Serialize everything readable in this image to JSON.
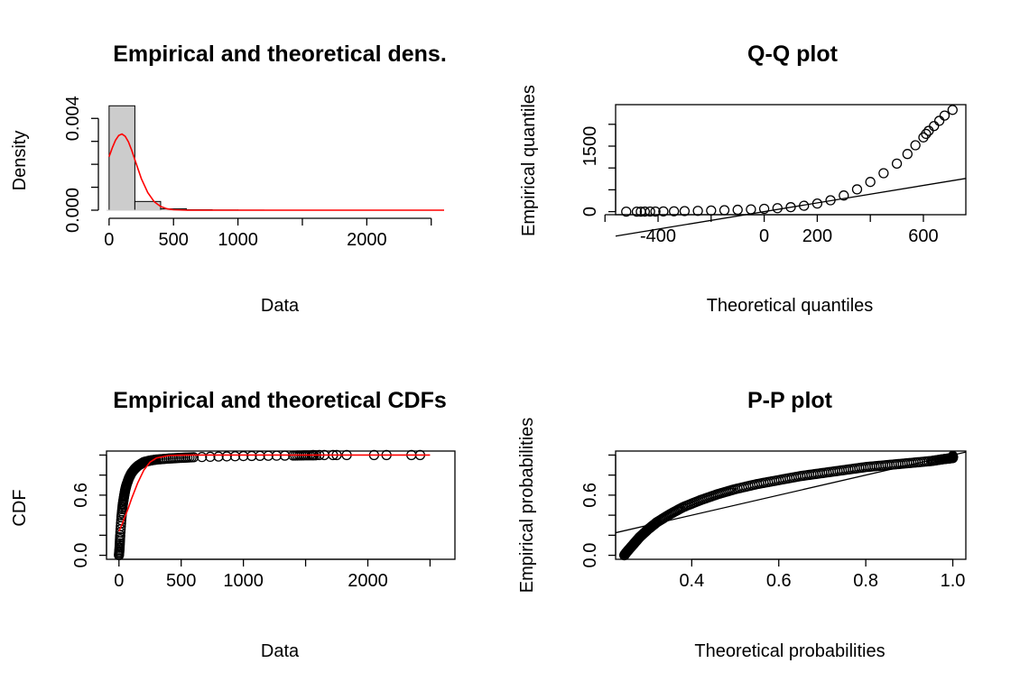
{
  "chart_data": [
    {
      "id": "density",
      "type": "bar",
      "title": "Empirical and theoretical dens.",
      "xlabel": "Data",
      "ylabel": "Density",
      "xlim": [
        -20,
        2600
      ],
      "ylim": [
        0,
        0.0046
      ],
      "x_ticks": [
        0,
        500,
        1000,
        2000
      ],
      "x_tick_marks": [
        0,
        500,
        1000,
        1500,
        2000,
        2500
      ],
      "y_ticks": [
        0.0,
        0.004
      ],
      "y_tick_marks": [
        0,
        0.001,
        0.002,
        0.003,
        0.004
      ],
      "y_tick_labels": [
        "0.000",
        "0.004"
      ],
      "bins": [
        {
          "from": 0,
          "to": 200,
          "density": 0.00455
        },
        {
          "from": 200,
          "to": 400,
          "density": 0.00038
        },
        {
          "from": 400,
          "to": 600,
          "density": 6e-05
        },
        {
          "from": 600,
          "to": 800,
          "density": 2e-05
        },
        {
          "from": 800,
          "to": 1000,
          "density": 8e-06
        },
        {
          "from": 1000,
          "to": 1200,
          "density": 3e-06
        }
      ],
      "curve": {
        "color": "#ff0000",
        "x": [
          0,
          25,
          50,
          75,
          100,
          125,
          150,
          175,
          200,
          250,
          300,
          350,
          400,
          450,
          500,
          600,
          700,
          800,
          1000,
          1500,
          2000,
          2600
        ],
        "y": [
          0.00233,
          0.00272,
          0.00305,
          0.00326,
          0.00332,
          0.00322,
          0.00298,
          0.00262,
          0.0022,
          0.00138,
          0.00077,
          0.00037,
          0.00016,
          6e-05,
          2e-05,
          3e-06,
          0,
          0,
          0,
          0,
          0,
          0
        ]
      }
    },
    {
      "id": "qq",
      "type": "scatter",
      "title": "Q-Q plot",
      "xlabel": "Theoretical quantiles",
      "ylabel": "Empirical quantiles",
      "xlim": [
        -560,
        760
      ],
      "ylim": [
        -70,
        2450
      ],
      "x_ticks": [
        -400,
        0,
        200,
        600
      ],
      "x_tick_marks": [
        -600,
        -400,
        -200,
        0,
        200,
        400,
        600
      ],
      "y_ticks": [
        0,
        1500
      ],
      "y_tick_marks": [
        0,
        500,
        1000,
        1500,
        2000
      ],
      "reference_line": [
        [
          -560,
          -560
        ],
        [
          760,
          760
        ]
      ],
      "points": [
        [
          -520,
          0
        ],
        [
          -480,
          0
        ],
        [
          -465,
          0
        ],
        [
          -450,
          1
        ],
        [
          -430,
          2
        ],
        [
          -410,
          3
        ],
        [
          -380,
          5
        ],
        [
          -340,
          8
        ],
        [
          -300,
          12
        ],
        [
          -250,
          18
        ],
        [
          -200,
          25
        ],
        [
          -150,
          33
        ],
        [
          -100,
          42
        ],
        [
          -50,
          52
        ],
        [
          0,
          64
        ],
        [
          50,
          80
        ],
        [
          100,
          102
        ],
        [
          150,
          135
        ],
        [
          200,
          185
        ],
        [
          250,
          260
        ],
        [
          300,
          370
        ],
        [
          350,
          510
        ],
        [
          400,
          680
        ],
        [
          450,
          880
        ],
        [
          500,
          1100
        ],
        [
          540,
          1320
        ],
        [
          570,
          1520
        ],
        [
          600,
          1700
        ],
        [
          610,
          1780
        ],
        [
          620,
          1850
        ],
        [
          640,
          1960
        ],
        [
          660,
          2080
        ],
        [
          680,
          2200
        ],
        [
          710,
          2330
        ]
      ]
    },
    {
      "id": "cdf",
      "type": "line",
      "title": "Empirical and theoretical CDFs",
      "xlabel": "Data",
      "ylabel": "CDF",
      "xlim": [
        -100,
        2700
      ],
      "ylim": [
        -0.04,
        1.04
      ],
      "x_ticks": [
        0,
        500,
        1000,
        2000
      ],
      "x_tick_marks": [
        0,
        500,
        1000,
        1500,
        2000,
        2500
      ],
      "y_ticks": [
        0.0,
        0.6
      ],
      "y_tick_marks": [
        0,
        0.2,
        0.4,
        0.6,
        0.8,
        1.0
      ],
      "y_tick_labels": [
        "0.0",
        "0.6"
      ],
      "empirical": {
        "x": [
          0,
          5,
          10,
          20,
          30,
          40,
          50,
          60,
          80,
          100,
          125,
          150,
          175,
          200,
          250,
          300,
          400,
          500,
          600,
          800,
          1000,
          1200,
          1400,
          1500,
          1600
        ],
        "y": [
          0.0,
          0.08,
          0.2,
          0.38,
          0.5,
          0.58,
          0.65,
          0.7,
          0.77,
          0.82,
          0.86,
          0.89,
          0.91,
          0.93,
          0.945,
          0.955,
          0.965,
          0.972,
          0.978,
          0.985,
          0.99,
          0.993,
          0.995,
          0.997,
          0.998
        ]
      },
      "outliers_x": [
        1560,
        1610,
        1650,
        1720,
        1750,
        1830,
        2050,
        2150,
        2350,
        2420
      ],
      "theoretical": {
        "color": "#ff0000",
        "x": [
          0,
          25,
          50,
          75,
          100,
          150,
          200,
          250,
          300,
          400,
          500,
          600,
          800,
          1000,
          1500,
          2000,
          2500
        ],
        "y": [
          0.24,
          0.31,
          0.39,
          0.47,
          0.56,
          0.72,
          0.85,
          0.93,
          0.97,
          0.995,
          0.999,
          1,
          1,
          1,
          1,
          1,
          1
        ]
      }
    },
    {
      "id": "pp",
      "type": "scatter",
      "title": "P-P plot",
      "xlabel": "Theoretical probabilities",
      "ylabel": "Empirical probabilities",
      "xlim": [
        0.225,
        1.03
      ],
      "ylim": [
        -0.04,
        1.04
      ],
      "x_ticks": [
        0.4,
        0.6,
        0.8,
        1.0
      ],
      "x_tick_labels": [
        "0.4",
        "0.6",
        "0.8",
        "1.0"
      ],
      "y_ticks": [
        0.0,
        0.6
      ],
      "y_tick_marks": [
        0,
        0.2,
        0.4,
        0.6,
        0.8,
        1.0
      ],
      "y_tick_labels": [
        "0.0",
        "0.6"
      ],
      "reference_line": [
        [
          0,
          0
        ],
        [
          1,
          1
        ]
      ],
      "points": [
        [
          0.245,
          0.0
        ],
        [
          0.25,
          0.03
        ],
        [
          0.26,
          0.08
        ],
        [
          0.27,
          0.13
        ],
        [
          0.28,
          0.18
        ],
        [
          0.3,
          0.26
        ],
        [
          0.32,
          0.33
        ],
        [
          0.35,
          0.41
        ],
        [
          0.38,
          0.48
        ],
        [
          0.42,
          0.55
        ],
        [
          0.46,
          0.61
        ],
        [
          0.5,
          0.66
        ],
        [
          0.55,
          0.71
        ],
        [
          0.6,
          0.75
        ],
        [
          0.65,
          0.79
        ],
        [
          0.7,
          0.82
        ],
        [
          0.75,
          0.85
        ],
        [
          0.8,
          0.88
        ],
        [
          0.85,
          0.9
        ],
        [
          0.9,
          0.92
        ],
        [
          0.95,
          0.94
        ],
        [
          0.98,
          0.96
        ],
        [
          1.0,
          0.97
        ],
        [
          1.0,
          0.99
        ]
      ]
    }
  ]
}
